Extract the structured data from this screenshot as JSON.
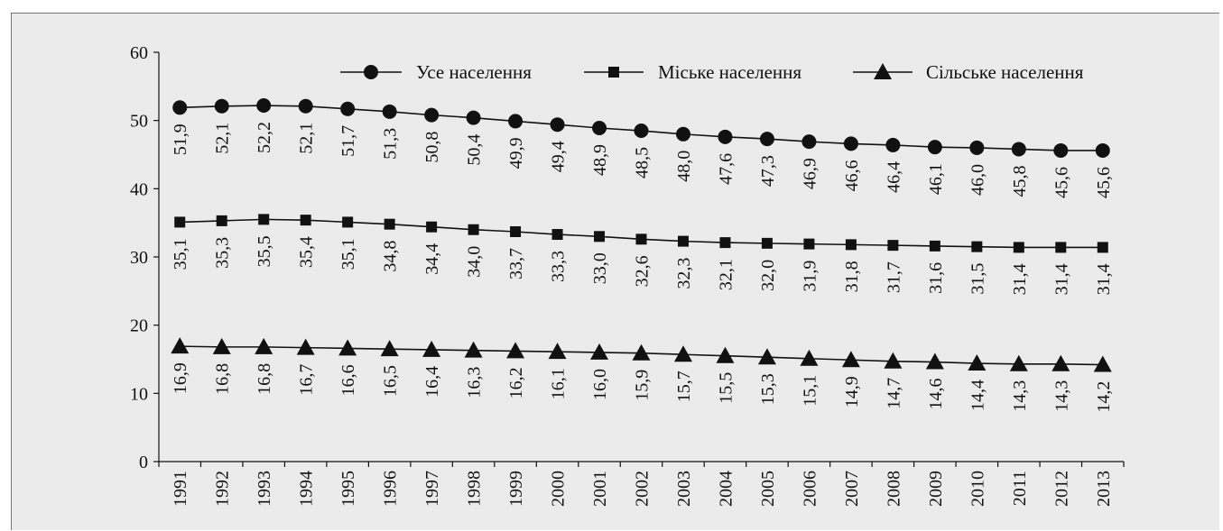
{
  "chart_data": {
    "type": "line",
    "categories": [
      "1991",
      "1992",
      "1993",
      "1994",
      "1995",
      "1996",
      "1997",
      "1998",
      "1999",
      "2000",
      "2001",
      "2002",
      "2003",
      "2004",
      "2005",
      "2006",
      "2007",
      "2008",
      "2009",
      "2010",
      "2011",
      "2012",
      "2013"
    ],
    "series": [
      {
        "name": "Усе населення",
        "marker": "circle",
        "values": [
          51.9,
          52.1,
          52.2,
          52.1,
          51.7,
          51.3,
          50.8,
          50.4,
          49.9,
          49.4,
          48.9,
          48.5,
          48.0,
          47.6,
          47.3,
          46.9,
          46.6,
          46.4,
          46.1,
          46.0,
          45.8,
          45.6,
          45.6
        ],
        "labels": [
          "51,9",
          "52,1",
          "52,2",
          "52,1",
          "51,7",
          "51,3",
          "50,8",
          "50,4",
          "49,9",
          "49,4",
          "48,9",
          "48,5",
          "48,0",
          "47,6",
          "47,3",
          "46,9",
          "46,6",
          "46,4",
          "46,1",
          "46,0",
          "45,8",
          "45,6",
          "45,6"
        ]
      },
      {
        "name": "Міське населення",
        "marker": "square",
        "values": [
          35.1,
          35.3,
          35.5,
          35.4,
          35.1,
          34.8,
          34.4,
          34.0,
          33.7,
          33.3,
          33.0,
          32.6,
          32.3,
          32.1,
          32.0,
          31.9,
          31.8,
          31.7,
          31.6,
          31.5,
          31.4,
          31.4,
          31.4
        ],
        "labels": [
          "35,1",
          "35,3",
          "35,5",
          "35,4",
          "35,1",
          "34,8",
          "34,4",
          "34,0",
          "33,7",
          "33,3",
          "33,0",
          "32,6",
          "32,3",
          "32,1",
          "32,0",
          "31,9",
          "31,8",
          "31,7",
          "31,6",
          "31,5",
          "31,4",
          "31,4",
          "31,4"
        ]
      },
      {
        "name": "Сільське населення",
        "marker": "triangle",
        "values": [
          16.9,
          16.8,
          16.8,
          16.7,
          16.6,
          16.5,
          16.4,
          16.3,
          16.2,
          16.1,
          16.0,
          15.9,
          15.7,
          15.5,
          15.3,
          15.1,
          14.9,
          14.7,
          14.6,
          14.4,
          14.3,
          14.3,
          14.2
        ],
        "labels": [
          "16,9",
          "16,8",
          "16,8",
          "16,7",
          "16,6",
          "16,5",
          "16,4",
          "16,3",
          "16,2",
          "16,1",
          "16,0",
          "15,9",
          "15,7",
          "15,5",
          "15,3",
          "15,1",
          "14,9",
          "14,7",
          "14,6",
          "14,4",
          "14,3",
          "14,3",
          "14,2"
        ]
      }
    ],
    "y_ticks": [
      "0",
      "10",
      "20",
      "30",
      "40",
      "50",
      "60"
    ],
    "ylim": [
      0,
      60
    ],
    "grid": false,
    "legend_position": "top",
    "colors": {
      "panel_bg": "#ebebeb",
      "line": "#111111",
      "marker": "#111111"
    }
  }
}
